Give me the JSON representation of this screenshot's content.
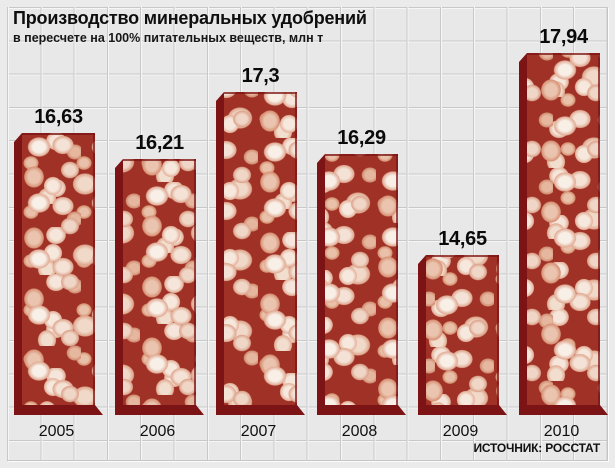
{
  "title": "Производство минеральных удобрений",
  "subtitle": "в пересчете на 100% питательных веществ, млн т",
  "source": "ИСТОЧНИК: РОССТАТ",
  "chart_data": {
    "type": "bar",
    "title": "Производство минеральных удобрений",
    "subtitle": "в пересчете на 100% питательных веществ, млн т",
    "unit": "млн т",
    "source": "ИСТОЧНИК: РОССТАТ",
    "categories": [
      "2005",
      "2006",
      "2007",
      "2008",
      "2009",
      "2010"
    ],
    "values": [
      16.63,
      16.21,
      17.3,
      16.29,
      14.65,
      17.94
    ],
    "value_labels": [
      "16,63",
      "16,21",
      "17,3",
      "16,29",
      "14,65",
      "17,94"
    ],
    "ylim": [
      14.0,
      18.2
    ],
    "baseline_truncated": true,
    "grid": true,
    "legend": "none",
    "colors": {
      "bar_side": "#7c1416",
      "granule_gap": "#a03126",
      "granule_light": "#f4e2d6",
      "granule_shadow": "#d89277",
      "text": "#0e0e0e",
      "background": "#e8e8e8",
      "grid_line": "#c8c8c8"
    }
  }
}
